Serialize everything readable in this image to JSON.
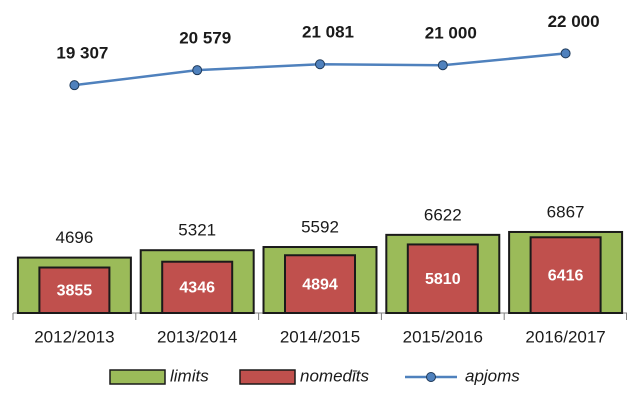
{
  "chart_data": {
    "type": "bar",
    "categories": [
      "2012/2013",
      "2013/2014",
      "2014/2015",
      "2015/2016",
      "2016/2017"
    ],
    "ylim": [
      0,
      25000
    ],
    "legend": "bottom",
    "series": [
      {
        "name": "limits",
        "color": "#9bbb59",
        "values": [
          4696,
          5321,
          5592,
          6622,
          6867
        ]
      },
      {
        "name": "nomedīts",
        "color": "#c0504d",
        "values": [
          3855,
          4346,
          4894,
          5810,
          6416
        ]
      },
      {
        "name": "apjoms",
        "type": "line",
        "color": "#4f81bd",
        "values": [
          19307,
          20579,
          21081,
          21000,
          22000
        ],
        "value_labels": [
          "19 307",
          "20 579",
          "21 081",
          "21 000",
          "22 000"
        ]
      }
    ]
  }
}
